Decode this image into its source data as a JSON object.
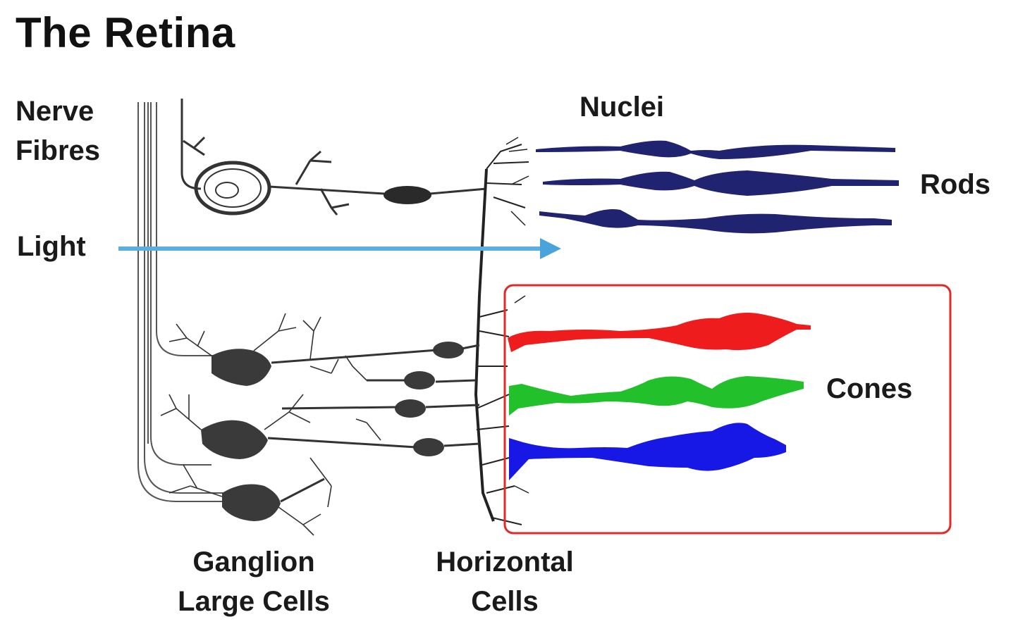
{
  "title": "The Retina",
  "labels": {
    "nerve_fibres": [
      "Nerve",
      "Fibres"
    ],
    "light": "Light",
    "nuclei": "Nuclei",
    "rods": "Rods",
    "cones": "Cones",
    "ganglion": [
      "Ganglion",
      "Large Cells"
    ],
    "horizontal": [
      "Horizontal",
      "Cells"
    ]
  },
  "colors": {
    "rod": "#1f2370",
    "cone_red": "#ee1c1c",
    "cone_green": "#22c02a",
    "cone_blue": "#1818e6",
    "light_arrow": "#5aaee0",
    "highlight_box": "#e02a2a",
    "neuron": "#333333"
  }
}
